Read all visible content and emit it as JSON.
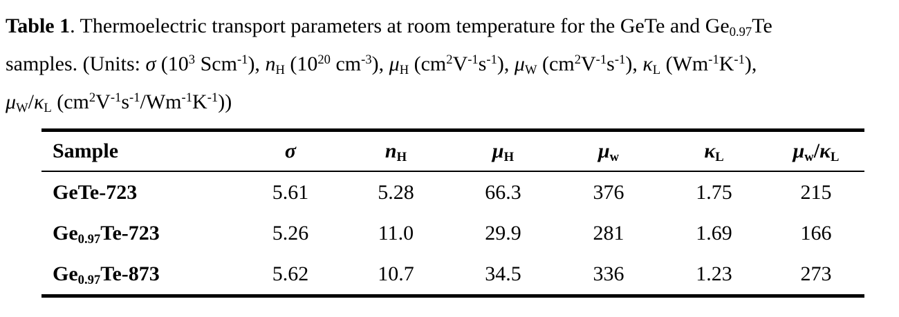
{
  "caption": {
    "label": "Table 1",
    "line1_text": ". Thermoelectric transport parameters at room temperature for the GeTe and Ge",
    "line1_sub": "0.97",
    "line1_end": "Te",
    "line2_a": "samples. (Units: ",
    "sigma": "σ",
    "line2_b": " (10",
    "exp_3": "3",
    "line2_c": " Scm",
    "exp_m1": "-1",
    "line2_d": "), ",
    "n": "n",
    "H": "H",
    "line2_e": " (10",
    "exp_20": "20",
    "line2_f": " cm",
    "exp_m3": "-3",
    "line2_g": "), ",
    "mu": "μ",
    "line2_h": " (cm",
    "exp_2": "2",
    "V": "V",
    "s": "s",
    "line2_i": "), ",
    "W": "W",
    "line2_j": " (cm",
    "line2_k": "), ",
    "kappa": "κ",
    "L": "L",
    "line2_l": " (Wm",
    "K": "K",
    "line2_m": "),",
    "slash": "/",
    "line3_a": " (cm",
    "line3_b": "/Wm",
    "line3_c": "))"
  },
  "table": {
    "headers": {
      "sample": "Sample",
      "sigma": "σ",
      "n_main": "n",
      "n_sub": "H",
      "mu_main": "μ",
      "mu_sub": "H",
      "muw_main": "μ",
      "muw_sub": "w",
      "kappa_main": "κ",
      "kappa_sub": "L",
      "ratio_mu": "μ",
      "ratio_w": "w",
      "ratio_slash": "/",
      "ratio_kappa": "κ",
      "ratio_L": "L"
    },
    "rows": [
      {
        "sample_main": "GeTe-723",
        "sample_sub": "",
        "sample_end": "",
        "sigma": "5.61",
        "nH": "5.28",
        "muH": "66.3",
        "muw": "376",
        "kL": "1.75",
        "ratio": "215"
      },
      {
        "sample_main": "Ge",
        "sample_sub": "0.97",
        "sample_end": "Te-723",
        "sigma": "5.26",
        "nH": "11.0",
        "muH": "29.9",
        "muw": "281",
        "kL": "1.69",
        "ratio": "166"
      },
      {
        "sample_main": "Ge",
        "sample_sub": "0.97",
        "sample_end": "Te-873",
        "sigma": "5.62",
        "nH": "10.7",
        "muH": "34.5",
        "muw": "336",
        "kL": "1.23",
        "ratio": "273"
      }
    ]
  }
}
